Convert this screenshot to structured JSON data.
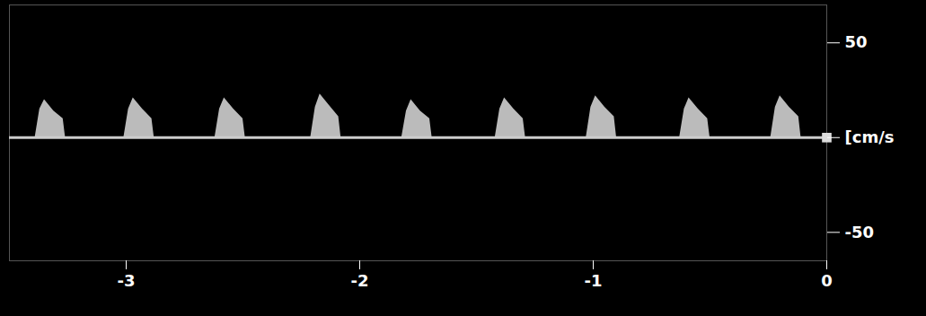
{
  "chart_data": {
    "type": "area",
    "color": "#cfcfcf",
    "grid": false,
    "x": [
      -3.39,
      -3.37,
      -3.35,
      -3.31,
      -3.27,
      -3.26,
      -3.19,
      -3.01,
      -2.99,
      -2.97,
      -2.93,
      -2.89,
      -2.88,
      -2.81,
      -2.62,
      -2.6,
      -2.58,
      -2.54,
      -2.5,
      -2.49,
      -2.42,
      -2.21,
      -2.19,
      -2.17,
      -2.13,
      -2.09,
      -2.08,
      -2.01,
      -1.82,
      -1.8,
      -1.78,
      -1.74,
      -1.7,
      -1.69,
      -1.62,
      -1.42,
      -1.4,
      -1.38,
      -1.34,
      -1.3,
      -1.29,
      -1.22,
      -1.03,
      -1.01,
      -0.99,
      -0.95,
      -0.91,
      -0.9,
      -0.83,
      -0.63,
      -0.61,
      -0.59,
      -0.55,
      -0.51,
      -0.5,
      -0.43,
      -0.24,
      -0.22,
      -0.2,
      -0.16,
      -0.12,
      -0.11,
      -0.04
    ],
    "values": [
      0,
      15,
      20,
      14,
      10,
      0,
      null,
      0,
      15,
      21,
      15,
      10,
      0,
      null,
      0,
      15,
      21,
      15,
      10,
      0,
      null,
      0,
      16,
      23,
      17,
      11,
      0,
      null,
      0,
      14,
      20,
      14,
      10,
      0,
      null,
      0,
      15,
      21,
      15,
      10,
      0,
      null,
      0,
      16,
      22,
      16,
      11,
      0,
      null,
      0,
      15,
      21,
      15,
      10,
      0,
      null,
      0,
      16,
      22,
      16,
      11,
      0,
      null
    ],
    "xlim": [
      -3.5,
      0
    ],
    "xticks": [
      -3,
      -2,
      -1,
      0
    ],
    "ylim": [
      -65,
      70
    ],
    "yticks": [
      -50,
      {
        "value": 0,
        "label": "[cm/s"
      },
      50
    ]
  }
}
